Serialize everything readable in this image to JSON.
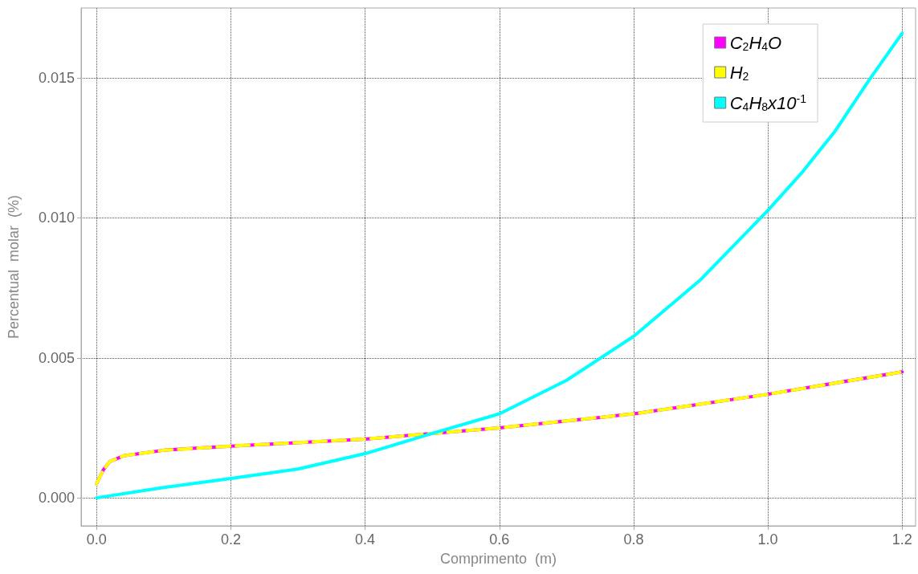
{
  "chart_data": {
    "type": "line",
    "xlabel": "Comprimento  (m)",
    "ylabel": "Percentual  molar  (%)",
    "xlim": [
      -0.023,
      1.22
    ],
    "ylim": [
      -0.001,
      0.0175
    ],
    "xticks": [
      {
        "value": 0,
        "label": "0.0"
      },
      {
        "value": 0.2,
        "label": "0.2"
      },
      {
        "value": 0.4,
        "label": "0.4"
      },
      {
        "value": 0.6,
        "label": "0.6"
      },
      {
        "value": 0.8,
        "label": "0.8"
      },
      {
        "value": 1,
        "label": "1.0"
      },
      {
        "value": 1.2,
        "label": "1.2"
      }
    ],
    "yticks": [
      {
        "value": 0,
        "label": "0.000"
      },
      {
        "value": 0.005,
        "label": "0.005"
      },
      {
        "value": 0.01,
        "label": "0.010"
      },
      {
        "value": 0.015,
        "label": "0.015"
      }
    ],
    "grid": true,
    "legend": "top right",
    "series": [
      {
        "name": "C$_{2}$H$_{4}$O",
        "color": "#ff00ff",
        "line_style": "solid",
        "x": [
          0,
          0.01,
          0.02,
          0.04,
          0.1,
          0.2,
          0.4,
          0.6,
          0.8,
          1.0,
          1.2
        ],
        "values": [
          0.0005,
          0.001,
          0.0013,
          0.0015,
          0.0017,
          0.00185,
          0.0021,
          0.0025,
          0.003,
          0.0037,
          0.0045
        ]
      },
      {
        "name": "H$_{2}$",
        "color": "#ffff00",
        "line_style": "dashed",
        "x": [
          0,
          0.01,
          0.02,
          0.04,
          0.1,
          0.2,
          0.4,
          0.6,
          0.8,
          1.0,
          1.2
        ],
        "values": [
          0.0005,
          0.001,
          0.0013,
          0.0015,
          0.0017,
          0.00185,
          0.0021,
          0.0025,
          0.003,
          0.0037,
          0.0045
        ]
      },
      {
        "name": "C$_{4}$H$_{8}$x10$^{-1}$",
        "color": "#00ffff",
        "line_style": "solid",
        "x": [
          0,
          0.1,
          0.2,
          0.3,
          0.4,
          0.5,
          0.6,
          0.7,
          0.8,
          0.9,
          1.0,
          1.05,
          1.1,
          1.15,
          1.2
        ],
        "values": [
          0,
          0.00037,
          0.00069,
          0.00103,
          0.00158,
          0.0023,
          0.003,
          0.0042,
          0.00577,
          0.0078,
          0.01027,
          0.0116,
          0.0131,
          0.0149,
          0.0166
        ]
      }
    ]
  }
}
